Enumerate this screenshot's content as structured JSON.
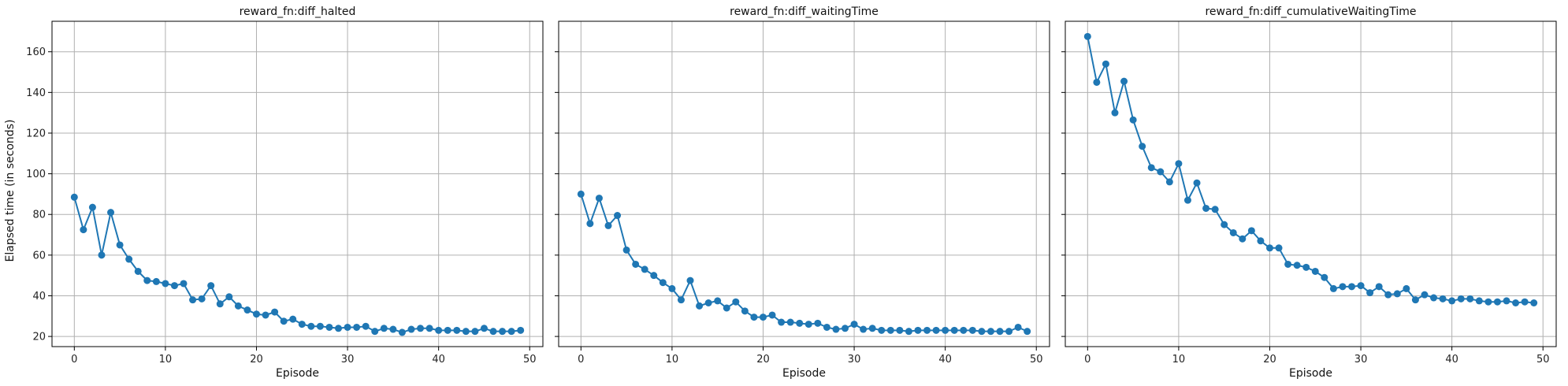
{
  "figure": {
    "ylabel": "Elapsed time (in seconds)",
    "sharey": true
  },
  "chart_data": [
    {
      "type": "line",
      "title": "reward_fn:diff_halted",
      "xlabel": "Episode",
      "ylabel": "Elapsed time (in seconds)",
      "xlim": [
        -2.45,
        51.45
      ],
      "ylim": [
        15,
        175
      ],
      "xticks": [
        0,
        10,
        20,
        30,
        40,
        50
      ],
      "yticks": [
        20,
        40,
        60,
        80,
        100,
        120,
        140,
        160
      ],
      "grid": true,
      "series": [
        {
          "color": "#1f77b4",
          "marker": "circle",
          "x": [
            0,
            1,
            2,
            3,
            4,
            5,
            6,
            7,
            8,
            9,
            10,
            11,
            12,
            13,
            14,
            15,
            16,
            17,
            18,
            19,
            20,
            21,
            22,
            23,
            24,
            25,
            26,
            27,
            28,
            29,
            30,
            31,
            32,
            33,
            34,
            35,
            36,
            37,
            38,
            39,
            40,
            41,
            42,
            43,
            44,
            45,
            46,
            47,
            48,
            49
          ],
          "y": [
            88.5,
            72.5,
            83.5,
            60,
            81,
            65,
            58,
            52,
            47.5,
            47,
            46,
            45,
            46,
            38,
            38.5,
            45,
            36,
            39.5,
            35,
            33,
            31,
            30.5,
            32,
            27.5,
            28.5,
            26,
            25,
            25,
            24.5,
            24,
            24.5,
            24.5,
            25,
            22.5,
            24,
            23.5,
            22,
            23.5,
            24,
            24,
            23,
            23,
            23,
            22.5,
            22.5,
            24,
            22.5,
            22.5,
            22.5,
            23
          ]
        }
      ]
    },
    {
      "type": "line",
      "title": "reward_fn:diff_waitingTime",
      "xlabel": "Episode",
      "ylabel": "",
      "xlim": [
        -2.45,
        51.45
      ],
      "ylim": [
        15,
        175
      ],
      "xticks": [
        0,
        10,
        20,
        30,
        40,
        50
      ],
      "yticks": [
        20,
        40,
        60,
        80,
        100,
        120,
        140,
        160
      ],
      "grid": true,
      "series": [
        {
          "color": "#1f77b4",
          "marker": "circle",
          "x": [
            0,
            1,
            2,
            3,
            4,
            5,
            6,
            7,
            8,
            9,
            10,
            11,
            12,
            13,
            14,
            15,
            16,
            17,
            18,
            19,
            20,
            21,
            22,
            23,
            24,
            25,
            26,
            27,
            28,
            29,
            30,
            31,
            32,
            33,
            34,
            35,
            36,
            37,
            38,
            39,
            40,
            41,
            42,
            43,
            44,
            45,
            46,
            47,
            48,
            49
          ],
          "y": [
            90,
            75.5,
            88,
            74.5,
            79.5,
            62.5,
            55.5,
            53,
            50,
            46.5,
            43.5,
            38,
            47.5,
            35,
            36.5,
            37.5,
            34,
            37,
            32.5,
            29.5,
            29.5,
            30.5,
            27,
            27,
            26.5,
            26,
            26.5,
            24.5,
            23.5,
            24,
            26,
            23.5,
            24,
            23,
            23,
            23,
            22.5,
            23,
            23,
            23,
            23,
            23,
            23,
            23,
            22.5,
            22.5,
            22.5,
            22.5,
            24.5,
            22.5
          ]
        }
      ]
    },
    {
      "type": "line",
      "title": "reward_fn:diff_cumulativeWaitingTime",
      "xlabel": "Episode",
      "ylabel": "",
      "xlim": [
        -2.45,
        51.45
      ],
      "ylim": [
        15,
        175
      ],
      "xticks": [
        0,
        10,
        20,
        30,
        40,
        50
      ],
      "yticks": [
        20,
        40,
        60,
        80,
        100,
        120,
        140,
        160
      ],
      "grid": true,
      "series": [
        {
          "color": "#1f77b4",
          "marker": "circle",
          "x": [
            0,
            1,
            2,
            3,
            4,
            5,
            6,
            7,
            8,
            9,
            10,
            11,
            12,
            13,
            14,
            15,
            16,
            17,
            18,
            19,
            20,
            21,
            22,
            23,
            24,
            25,
            26,
            27,
            28,
            29,
            30,
            31,
            32,
            33,
            34,
            35,
            36,
            37,
            38,
            39,
            40,
            41,
            42,
            43,
            44,
            45,
            46,
            47,
            48,
            49
          ],
          "y": [
            167.5,
            145,
            154,
            130,
            145.5,
            126.5,
            113.5,
            103,
            101,
            96,
            105,
            87,
            95.5,
            83,
            82.5,
            75,
            71,
            68,
            72,
            67,
            63.5,
            63.5,
            55.5,
            55,
            54,
            52,
            49,
            43.5,
            44.5,
            44.5,
            45,
            41.5,
            44.5,
            40.5,
            41,
            43.5,
            38,
            40.5,
            39,
            38.5,
            37.5,
            38.5,
            38.5,
            37.5,
            37,
            37,
            37.5,
            36.5,
            37,
            36.5
          ]
        }
      ]
    }
  ]
}
